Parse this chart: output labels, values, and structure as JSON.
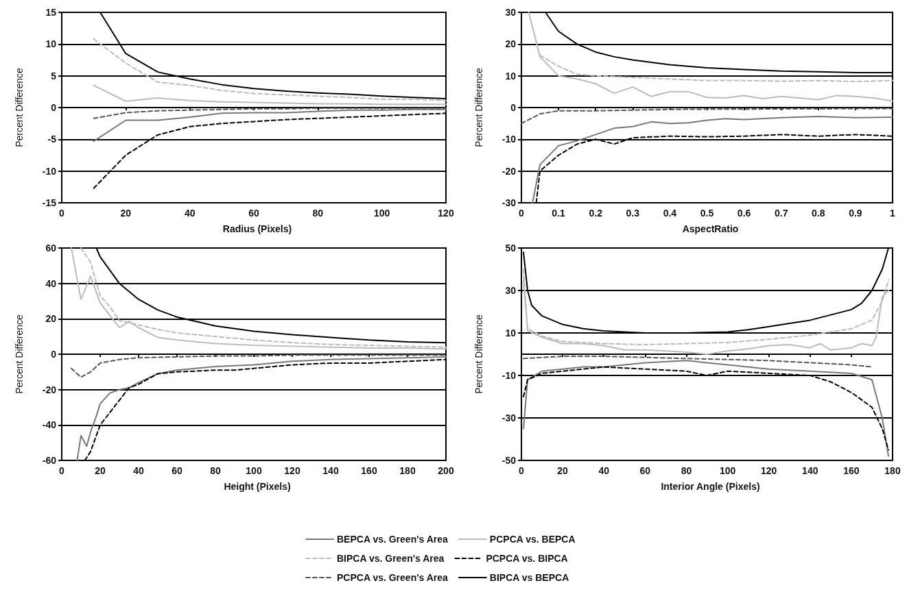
{
  "chart_data": [
    {
      "type": "line",
      "xlabel": "Radius (Pixels)",
      "ylabel": "Percent Difference",
      "xlim": [
        0,
        120
      ],
      "xticks": [
        0,
        20,
        40,
        60,
        80,
        100,
        120
      ],
      "ylim": [
        -15,
        15
      ],
      "yticks": [
        -15,
        -10,
        -5,
        0,
        5,
        10,
        15
      ],
      "grid": "y",
      "marker": "none",
      "legend": false,
      "series": [
        {
          "color": "#777777",
          "line_style": "solid",
          "x": [
            10,
            20,
            30,
            40,
            50,
            60,
            70,
            80,
            90,
            100,
            110,
            120
          ],
          "values": [
            -5.3,
            -2,
            -2,
            -1.5,
            -0.9,
            -0.8,
            -0.8,
            -0.6,
            -0.4,
            -0.4,
            -0.3,
            -0.3
          ]
        },
        {
          "color": "#bbbbbb",
          "line_style": "solid",
          "x": [
            10,
            20,
            30,
            40,
            50,
            60,
            70,
            80,
            90,
            100,
            110,
            120
          ],
          "values": [
            3.5,
            1,
            1.5,
            1.1,
            0.9,
            0.8,
            0.7,
            0.6,
            0.6,
            0.5,
            0.5,
            0.5
          ]
        },
        {
          "color": "#bbbbbb",
          "line_style": "dashed",
          "x": [
            10,
            20,
            30,
            40,
            50,
            60,
            70,
            80,
            90,
            100,
            110,
            120
          ],
          "values": [
            10.8,
            7,
            4,
            3.5,
            2.7,
            2.2,
            2,
            1.8,
            1.6,
            1.3,
            1.3,
            1.1
          ]
        },
        {
          "color": "#000000",
          "line_style": "dashed",
          "x": [
            10,
            20,
            30,
            40,
            50,
            60,
            70,
            80,
            90,
            100,
            110,
            120
          ],
          "values": [
            -12.7,
            -7.5,
            -4.3,
            -3,
            -2.5,
            -2.2,
            -1.9,
            -1.7,
            -1.5,
            -1.3,
            -1.1,
            -0.9
          ]
        },
        {
          "color": "#555555",
          "line_style": "dashed",
          "x": [
            10,
            20,
            30,
            40,
            50,
            60,
            70,
            80,
            90,
            100,
            110,
            120
          ],
          "values": [
            -1.7,
            -0.8,
            -0.5,
            -0.4,
            -0.3,
            -0.2,
            -0.2,
            -0.1,
            -0.1,
            -0.1,
            -0.1,
            -0.1
          ]
        },
        {
          "color": "#000000",
          "line_style": "solid",
          "x": [
            12,
            20,
            30,
            40,
            50,
            60,
            70,
            80,
            90,
            100,
            110,
            120
          ],
          "values": [
            15,
            8.5,
            5.6,
            4.5,
            3.6,
            3,
            2.6,
            2.3,
            2.1,
            1.8,
            1.6,
            1.4
          ]
        }
      ]
    },
    {
      "type": "line",
      "xlabel": "AspectRatio",
      "ylabel": "Percent Difference",
      "xlim": [
        0,
        1
      ],
      "xticks": [
        0,
        0.1,
        0.2,
        0.3,
        0.4,
        0.5,
        0.6,
        0.7,
        0.8,
        0.9,
        1
      ],
      "ylim": [
        -30,
        30
      ],
      "yticks": [
        -30,
        -20,
        -10,
        0,
        10,
        20,
        30
      ],
      "grid": "y",
      "marker": "none",
      "legend": false,
      "series": [
        {
          "color": "#777777",
          "line_style": "solid",
          "x": [
            0.03,
            0.05,
            0.1,
            0.15,
            0.2,
            0.25,
            0.3,
            0.35,
            0.4,
            0.45,
            0.5,
            0.55,
            0.6,
            0.7,
            0.8,
            0.9,
            1
          ],
          "values": [
            -30,
            -18,
            -12,
            -10.5,
            -8.5,
            -6.5,
            -6,
            -4.5,
            -5,
            -4.8,
            -4,
            -3.5,
            -3.8,
            -3.2,
            -2.8,
            -3.2,
            -3
          ]
        },
        {
          "color": "#bbbbbb",
          "line_style": "solid",
          "x": [
            0.02,
            0.05,
            0.1,
            0.15,
            0.2,
            0.25,
            0.3,
            0.35,
            0.4,
            0.45,
            0.5,
            0.55,
            0.6,
            0.65,
            0.7,
            0.75,
            0.8,
            0.85,
            0.9,
            0.95,
            1
          ],
          "values": [
            30,
            16,
            10,
            9,
            7.5,
            4.5,
            6.5,
            3.5,
            5,
            5,
            3.2,
            3,
            3.8,
            2.8,
            3.5,
            3,
            2.5,
            3.8,
            3.5,
            3,
            2
          ]
        },
        {
          "color": "#bbbbbb",
          "line_style": "dashed",
          "x": [
            0.05,
            0.1,
            0.15,
            0.2,
            0.3,
            0.4,
            0.5,
            0.6,
            0.7,
            0.8,
            0.9,
            1
          ],
          "values": [
            16.5,
            13,
            10.5,
            10,
            9.5,
            9,
            8.5,
            8.5,
            8.3,
            8.5,
            8.2,
            8.5
          ]
        },
        {
          "color": "#000000",
          "line_style": "dashed",
          "x": [
            0.04,
            0.05,
            0.1,
            0.15,
            0.2,
            0.25,
            0.3,
            0.4,
            0.5,
            0.6,
            0.7,
            0.8,
            0.9,
            1
          ],
          "values": [
            -30,
            -20,
            -15,
            -11.5,
            -10,
            -11.5,
            -9.5,
            -9,
            -9.2,
            -9,
            -8.5,
            -9,
            -8.5,
            -9
          ]
        },
        {
          "color": "#555555",
          "line_style": "dashed",
          "x": [
            0,
            0.05,
            0.1,
            0.2,
            0.3,
            0.4,
            0.5,
            0.6,
            0.7,
            0.8,
            0.9,
            1
          ],
          "values": [
            -5,
            -2,
            -1,
            -1,
            -0.8,
            -0.6,
            -0.5,
            -0.5,
            -0.4,
            -0.4,
            -0.3,
            -0.3
          ]
        },
        {
          "color": "#000000",
          "line_style": "solid",
          "x": [
            0.065,
            0.1,
            0.15,
            0.2,
            0.25,
            0.3,
            0.4,
            0.5,
            0.6,
            0.7,
            0.8,
            0.9,
            1
          ],
          "values": [
            30,
            24,
            20,
            17.5,
            16,
            15,
            13.5,
            12.5,
            12,
            11.5,
            11.3,
            11,
            11
          ]
        }
      ]
    },
    {
      "type": "line",
      "xlabel": "Height (Pixels)",
      "ylabel": "Percent Difference",
      "xlim": [
        0,
        200
      ],
      "xticks": [
        0,
        20,
        40,
        60,
        80,
        100,
        120,
        140,
        160,
        180,
        200
      ],
      "ylim": [
        -60,
        60
      ],
      "yticks": [
        -60,
        -40,
        -20,
        0,
        20,
        40,
        60
      ],
      "grid": "y",
      "marker": "none",
      "legend": false,
      "series": [
        {
          "color": "#777777",
          "line_style": "solid",
          "x": [
            8,
            10,
            13,
            15,
            18,
            20,
            25,
            30,
            35,
            40,
            50,
            60,
            80,
            100,
            120,
            140,
            160,
            180,
            200
          ],
          "values": [
            -60,
            -46,
            -52,
            -44,
            -35,
            -28,
            -22,
            -20,
            -19,
            -16,
            -11,
            -9,
            -7,
            -6,
            -4,
            -3,
            -2.5,
            -2,
            -1.5
          ]
        },
        {
          "color": "#bbbbbb",
          "line_style": "solid",
          "x": [
            5,
            10,
            15,
            20,
            25,
            30,
            35,
            40,
            50,
            60,
            80,
            100,
            120,
            140,
            160,
            180,
            200
          ],
          "values": [
            60,
            31,
            44,
            29,
            22,
            15,
            18.5,
            15,
            9.5,
            8,
            6,
            5,
            4.5,
            4,
            3.5,
            3.5,
            3
          ]
        },
        {
          "color": "#bbbbbb",
          "line_style": "dashed",
          "x": [
            10,
            15,
            20,
            25,
            30,
            40,
            50,
            60,
            80,
            100,
            120,
            140,
            160,
            180,
            200
          ],
          "values": [
            60,
            52,
            33,
            27,
            19,
            16.5,
            14,
            12,
            10,
            8,
            6.5,
            5.5,
            5,
            4.5,
            4
          ]
        },
        {
          "color": "#000000",
          "line_style": "dashed",
          "x": [
            12,
            15,
            20,
            25,
            30,
            35,
            40,
            50,
            60,
            80,
            90,
            100,
            120,
            140,
            160,
            180,
            200
          ],
          "values": [
            -60,
            -55,
            -40,
            -33,
            -26,
            -19,
            -17,
            -11,
            -10,
            -9,
            -9,
            -8,
            -6,
            -5,
            -5,
            -4,
            -3
          ]
        },
        {
          "color": "#555555",
          "line_style": "dashed",
          "x": [
            5,
            10,
            15,
            20,
            30,
            40,
            60,
            80,
            100,
            120,
            140,
            160,
            180,
            200
          ],
          "values": [
            -8,
            -13,
            -10,
            -5,
            -3,
            -2,
            -1.5,
            -1,
            -1,
            -0.5,
            -0.5,
            -0.5,
            -0.5,
            -0.5
          ]
        },
        {
          "color": "#000000",
          "line_style": "solid",
          "x": [
            18,
            20,
            30,
            40,
            50,
            60,
            70,
            80,
            100,
            120,
            140,
            160,
            180,
            200
          ],
          "values": [
            60,
            55,
            40,
            31,
            25,
            21,
            18.5,
            16,
            13,
            11,
            9.5,
            8,
            7,
            6.5
          ]
        }
      ]
    },
    {
      "type": "line",
      "xlabel": "Interior Angle (Pixels)",
      "ylabel": "Percent Difference",
      "xlim": [
        0,
        180
      ],
      "xticks": [
        0,
        20,
        40,
        60,
        80,
        100,
        120,
        140,
        160,
        180
      ],
      "ylim": [
        -50,
        50
      ],
      "yticks": [
        -50,
        -30,
        -10,
        10,
        30,
        50
      ],
      "grid": "y",
      "marker": "none",
      "legend": "bottom",
      "series": [
        {
          "name": "BEPCA vs. Green's Area",
          "color": "#777777",
          "line_style": "solid",
          "x": [
            1,
            3,
            10,
            20,
            30,
            40,
            50,
            60,
            80,
            100,
            120,
            140,
            160,
            170,
            175,
            178
          ],
          "values": [
            -35,
            -12,
            -8,
            -7,
            -6,
            -6,
            -5,
            -4,
            -3,
            -5,
            -7,
            -8,
            -9,
            -12,
            -30,
            -48
          ]
        },
        {
          "name": "PCPCA vs. BEPCA",
          "color": "#bbbbbb",
          "line_style": "solid",
          "x": [
            1,
            3,
            10,
            20,
            30,
            40,
            50,
            60,
            70,
            80,
            90,
            100,
            110,
            120,
            130,
            140,
            145,
            150,
            160,
            165,
            170,
            172,
            175,
            178
          ],
          "values": [
            35,
            11,
            8,
            5,
            5,
            4,
            2,
            2,
            1.5,
            1,
            0,
            1.5,
            2.5,
            4,
            4.5,
            3,
            5,
            2,
            3,
            5,
            4,
            8,
            27,
            30
          ]
        },
        {
          "name": "BIPCA vs. Green's Area",
          "color": "#bbbbbb",
          "line_style": "dashed",
          "x": [
            1,
            3,
            10,
            20,
            40,
            60,
            80,
            100,
            120,
            140,
            160,
            170,
            175,
            178
          ],
          "values": [
            40,
            12,
            8.5,
            6,
            5,
            4.5,
            5,
            5.5,
            7,
            9,
            12,
            16,
            25,
            35
          ]
        },
        {
          "name": "PCPCA vs. BIPCA",
          "color": "#000000",
          "line_style": "dashed",
          "x": [
            1,
            3,
            10,
            20,
            40,
            60,
            80,
            90,
            100,
            120,
            140,
            150,
            160,
            170,
            175,
            178
          ],
          "values": [
            -20,
            -12,
            -9,
            -8,
            -6,
            -7,
            -8,
            -10,
            -8,
            -9,
            -10,
            -13,
            -18,
            -25,
            -35,
            -45
          ]
        },
        {
          "name": "PCPCA vs. Green's Area",
          "color": "#555555",
          "line_style": "dashed",
          "x": [
            1,
            20,
            40,
            60,
            80,
            100,
            120,
            140,
            160,
            170
          ],
          "values": [
            -2,
            -1,
            -1,
            -1.5,
            -2,
            -2.5,
            -3,
            -4,
            -5,
            -6
          ]
        },
        {
          "name": "BIPCA vs BEPCA",
          "color": "#000000",
          "line_style": "solid",
          "x": [
            1,
            3,
            5,
            10,
            20,
            30,
            40,
            50,
            60,
            80,
            100,
            110,
            120,
            130,
            140,
            150,
            160,
            165,
            170,
            175,
            178
          ],
          "values": [
            48,
            30,
            23,
            18,
            14,
            12,
            11,
            10.5,
            10,
            10,
            10.5,
            11.5,
            13,
            14.5,
            16,
            18.5,
            21,
            24,
            30,
            40,
            50
          ]
        }
      ]
    }
  ]
}
